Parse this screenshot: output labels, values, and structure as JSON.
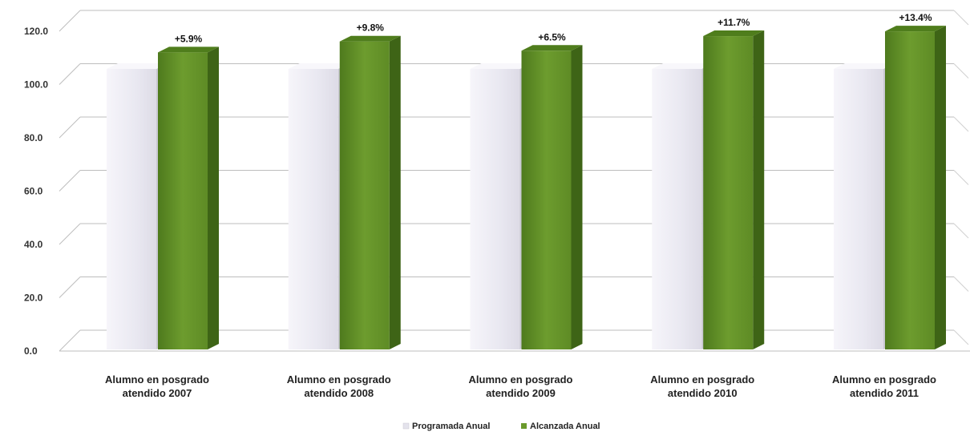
{
  "chart_data": {
    "type": "bar",
    "categories": [
      [
        "Alumno en posgrado",
        "atendido 2007"
      ],
      [
        "Alumno en posgrado",
        "atendido 2008"
      ],
      [
        "Alumno en posgrado",
        "atendido 2009"
      ],
      [
        "Alumno en posgrado",
        "atendido 2010"
      ],
      [
        "Alumno en posgrado",
        "atendido 2011"
      ]
    ],
    "series": [
      {
        "name": "Programada Anual",
        "values": [
          100,
          100,
          100,
          100,
          100
        ],
        "color": "#ecebf3"
      },
      {
        "name": "Alcanzada Anual",
        "values": [
          105.9,
          109.8,
          106.5,
          111.7,
          113.4
        ],
        "color": "#6a9a2c"
      }
    ],
    "data_labels": [
      "+5.9%",
      "+9.8%",
      "+6.5%",
      "+11.7%",
      "+13.4%"
    ],
    "y_ticks": [
      "0.0",
      "20.0",
      "40.0",
      "60.0",
      "80.0",
      "100.0",
      "120.0"
    ],
    "ylim": [
      0,
      120
    ],
    "grid": true,
    "legend_position": "bottom-center",
    "title": "",
    "xlabel": "",
    "ylabel": ""
  }
}
